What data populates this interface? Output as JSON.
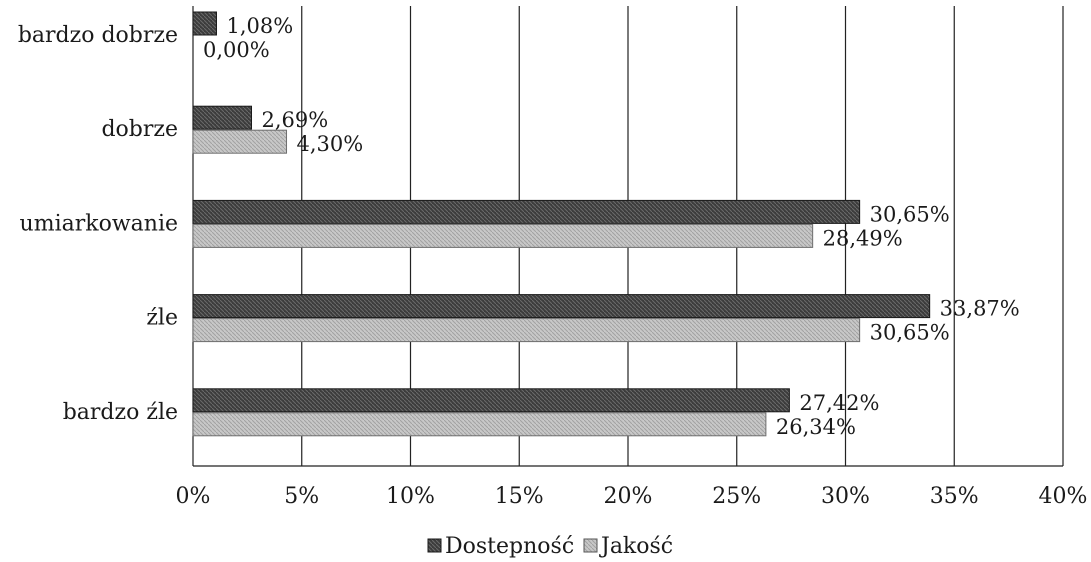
{
  "chart_data": {
    "type": "bar",
    "orientation": "horizontal",
    "title": "",
    "xlabel": "",
    "ylabel": "",
    "categories": [
      "bardzo dobrze",
      "dobrze",
      "umiarkowanie",
      "źle",
      "bardzo źle"
    ],
    "series": [
      {
        "name": "Dostępność",
        "values": [
          1.08,
          2.69,
          30.65,
          33.87,
          27.42
        ],
        "labels": [
          "1,08%",
          "2,69%",
          "30,65%",
          "33,87%",
          "27,42%"
        ],
        "color": "#3c3c3c"
      },
      {
        "name": "Jakość",
        "values": [
          0.0,
          4.3,
          28.49,
          30.65,
          26.34
        ],
        "labels": [
          "0,00%",
          "4,30%",
          "28,49%",
          "30,65%",
          "26,34%"
        ],
        "color": "#c4c4c4"
      }
    ],
    "xlim": [
      0,
      40
    ],
    "ticks": [
      0,
      5,
      10,
      15,
      20,
      25,
      30,
      35,
      40
    ],
    "tick_labels": [
      "0%",
      "5%",
      "10%",
      "15%",
      "20%",
      "25%",
      "30%",
      "35%",
      "40%"
    ],
    "grid": "vertical",
    "legend": "bottom-center"
  },
  "legend_text": [
    "Dostepność",
    "Jakość"
  ]
}
